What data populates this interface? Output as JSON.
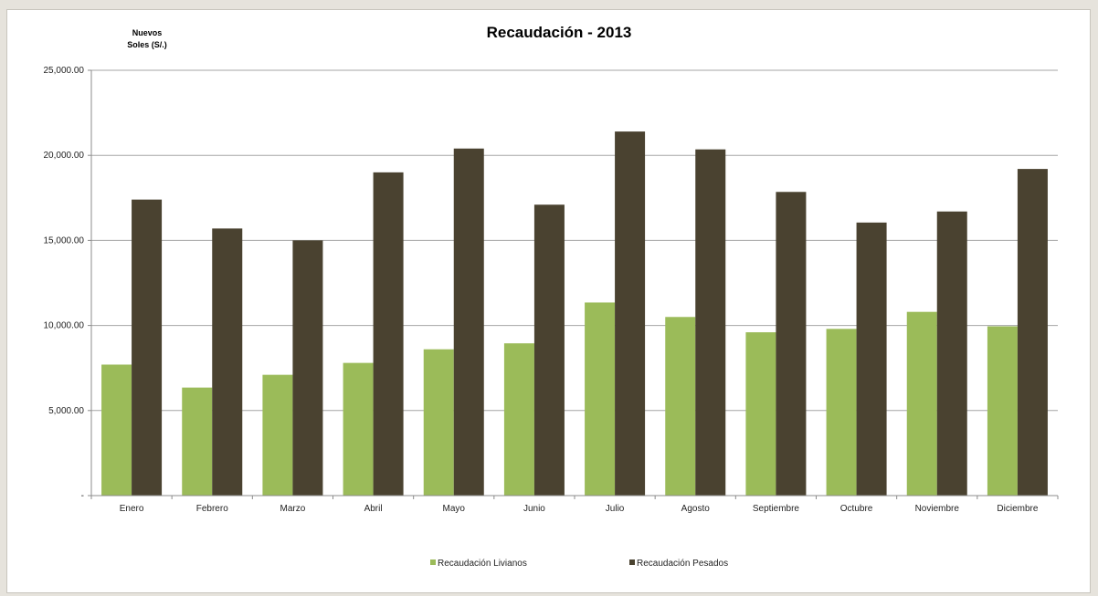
{
  "chart_data": {
    "type": "bar",
    "title": "Recaudación - 2013",
    "ylabel_lines": [
      "Nuevos",
      "Soles (S/.)"
    ],
    "xlabel": "",
    "categories": [
      "Enero",
      "Febrero",
      "Marzo",
      "Abril",
      "Mayo",
      "Junio",
      "Julio",
      "Agosto",
      "Septiembre",
      "Octubre",
      "Noviembre",
      "Diciembre"
    ],
    "series": [
      {
        "name": "Recaudación Livianos",
        "color": "#9bbb59",
        "values": [
          7700,
          6350,
          7100,
          7800,
          8600,
          8950,
          11350,
          10500,
          9600,
          9800,
          10800,
          9950
        ]
      },
      {
        "name": "Recaudación Pesados",
        "color": "#4a4230",
        "values": [
          17400,
          15700,
          15000,
          19000,
          20400,
          17100,
          21400,
          20350,
          17850,
          16050,
          16700,
          19200
        ]
      }
    ],
    "ylim": [
      0,
      25000
    ],
    "yticks": [
      {
        "value": 0,
        "label": "-"
      },
      {
        "value": 5000,
        "label": "5,000.00"
      },
      {
        "value": 10000,
        "label": "10,000.00"
      },
      {
        "value": 15000,
        "label": "15,000.00"
      },
      {
        "value": 20000,
        "label": "20,000.00"
      },
      {
        "value": 25000,
        "label": "25,000.00"
      }
    ],
    "grid": true,
    "legend_position": "bottom"
  }
}
